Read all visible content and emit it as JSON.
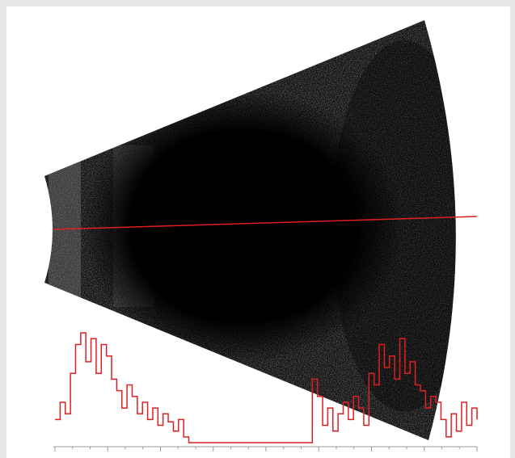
{
  "chart_data": {
    "type": "line",
    "color": "#e02020",
    "ylim": [
      0,
      100
    ],
    "values": [
      20,
      35,
      25,
      60,
      85,
      95,
      70,
      90,
      60,
      85,
      75,
      55,
      45,
      30,
      50,
      40,
      25,
      35,
      20,
      30,
      15,
      25,
      18,
      10,
      20,
      5,
      0,
      0,
      0,
      0,
      0,
      0,
      0,
      0,
      0,
      0,
      0,
      0,
      0,
      0,
      0,
      0,
      0,
      0,
      0,
      0,
      0,
      0,
      0,
      0,
      55,
      40,
      15,
      30,
      10,
      25,
      35,
      20,
      40,
      30,
      15,
      60,
      50,
      85,
      65,
      75,
      55,
      90,
      60,
      70,
      50,
      45,
      30,
      40,
      35,
      20,
      5,
      25,
      10,
      35,
      15,
      30,
      20
    ]
  }
}
